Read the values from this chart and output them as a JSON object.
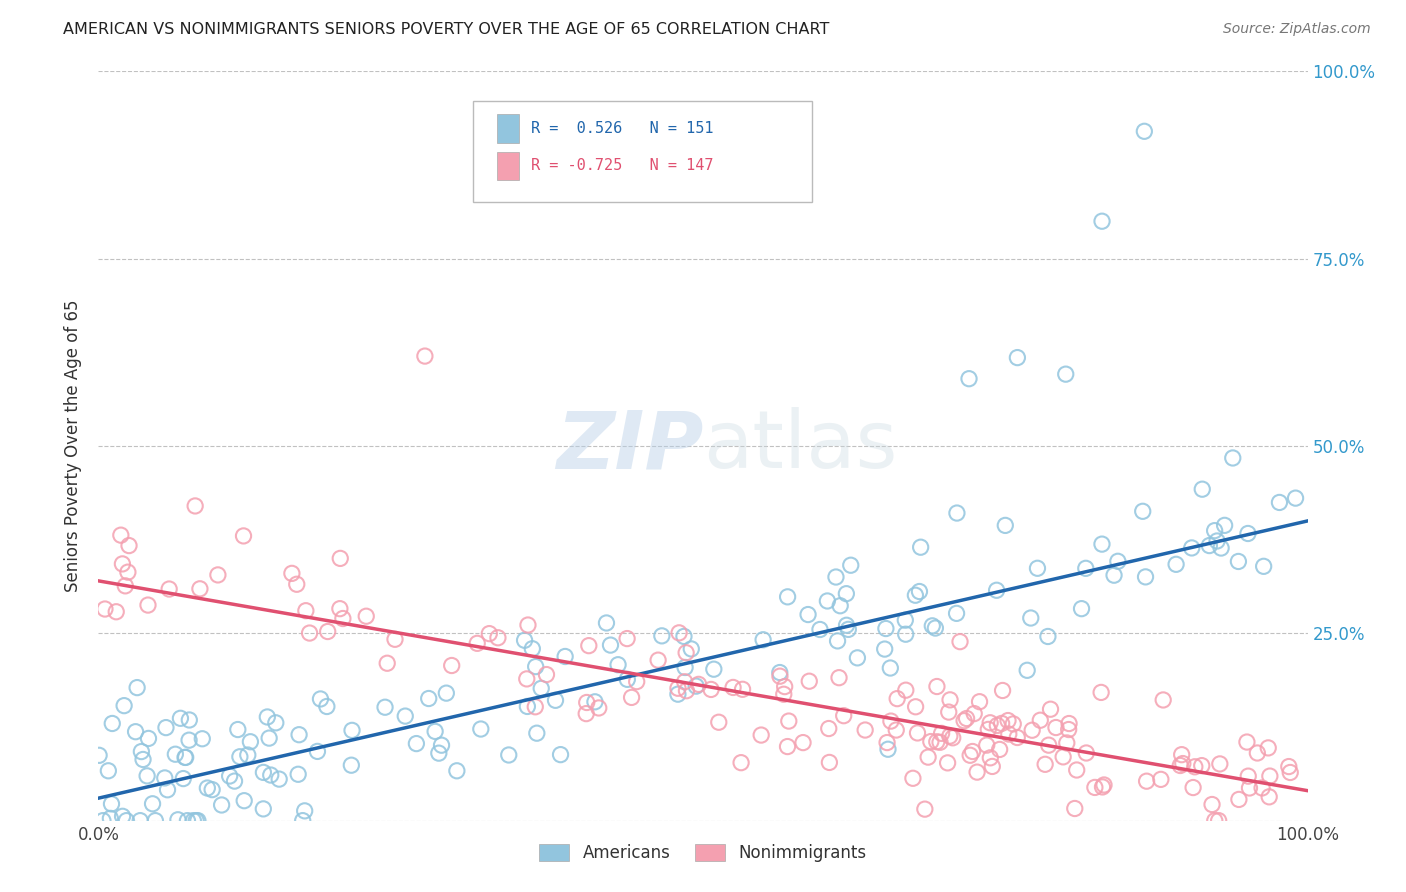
{
  "title": "AMERICAN VS NONIMMIGRANTS SENIORS POVERTY OVER THE AGE OF 65 CORRELATION CHART",
  "source": "Source: ZipAtlas.com",
  "ylabel": "Seniors Poverty Over the Age of 65",
  "r_american": 0.526,
  "n_american": 151,
  "r_nonimmigrant": -0.725,
  "n_nonimmigrant": 147,
  "american_color": "#92c5de",
  "nonimmigrant_color": "#f4a0b0",
  "american_line_color": "#2166ac",
  "nonimmigrant_line_color": "#e05070",
  "am_trend_x0": 0.0,
  "am_trend_y0": 0.03,
  "am_trend_x1": 1.0,
  "am_trend_y1": 0.4,
  "ni_trend_x0": 0.0,
  "ni_trend_y0": 0.32,
  "ni_trend_x1": 1.0,
  "ni_trend_y1": 0.04,
  "xlim": [
    0,
    1
  ],
  "ylim": [
    0,
    1
  ],
  "background_color": "#ffffff",
  "grid_color": "#bbbbbb",
  "watermark_color": "#d0d8e8",
  "watermark_alpha": 0.5
}
